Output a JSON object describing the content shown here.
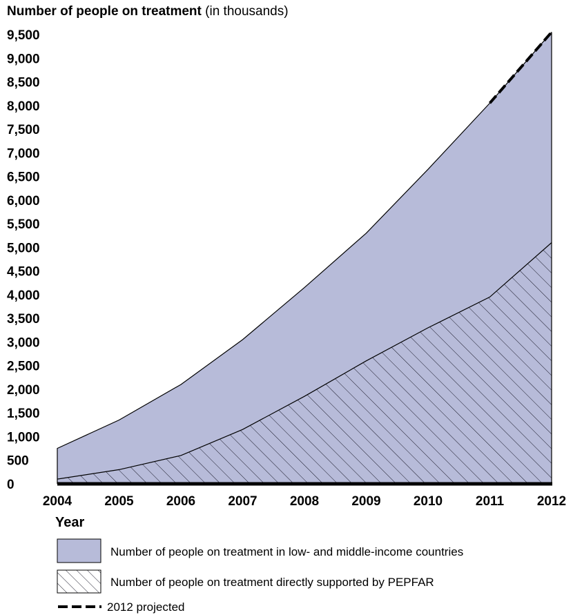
{
  "chart_data": {
    "type": "area",
    "title": "Number of people on treatment",
    "title_suffix": "(in thousands)",
    "xlabel": "Year",
    "x": [
      2004,
      2005,
      2006,
      2007,
      2008,
      2009,
      2010,
      2011,
      2012
    ],
    "xlim": [
      2004,
      2012
    ],
    "ylim": [
      0,
      9500
    ],
    "y_ticks": [
      0,
      500,
      1000,
      1500,
      2000,
      2500,
      3000,
      3500,
      4000,
      4500,
      5000,
      5500,
      6000,
      6500,
      7000,
      7500,
      8000,
      8500,
      9000,
      9500
    ],
    "y_tick_labels": [
      "0",
      "500",
      "1,000",
      "1,500",
      "2,000",
      "2,500",
      "3,000",
      "3,500",
      "4,000",
      "4,500",
      "5,000",
      "5,500",
      "6,000",
      "6,500",
      "7,000",
      "7,500",
      "8,000",
      "8,500",
      "9,000",
      "9,500"
    ],
    "grid": false,
    "series": [
      {
        "name": "Number of people on treatment in low- and middle-income countries",
        "values": [
          750,
          1350,
          2100,
          3050,
          4150,
          5300,
          6650,
          8050,
          9550
        ],
        "color": "#b7bbd9",
        "style": "solid"
      },
      {
        "name": "Number of people on treatment directly supported by PEPFAR",
        "values": [
          100,
          300,
          600,
          1150,
          1850,
          2600,
          3300,
          3950,
          5100
        ],
        "color": "#b7bbd9",
        "style": "hatched"
      }
    ],
    "projection": {
      "name": "2012 projected",
      "from_year": 2011,
      "to_year": 2012
    },
    "legend_position": "bottom-left"
  }
}
